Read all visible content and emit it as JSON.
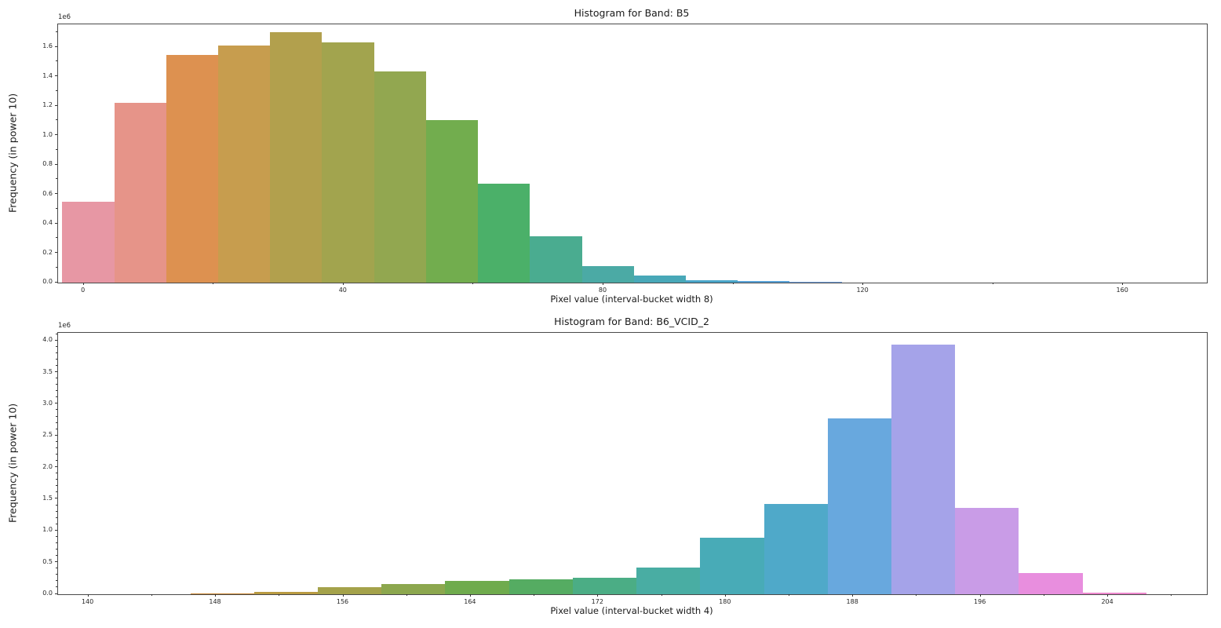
{
  "chart_data": [
    {
      "type": "bar",
      "title": "Histogram for Band: B5",
      "xlabel": "Pixel value (interval-bucket width 8)",
      "ylabel": "Frequency (in power 10)",
      "y_offset_label": "1e6",
      "grid": false,
      "legend": "none",
      "xlim": [
        -3.95,
        172.9
      ],
      "ylim": [
        0,
        1.755
      ],
      "ylim_unit": "1e6",
      "bins": {
        "start": -3.31,
        "width": 8
      },
      "counts_1e6": [
        0.545,
        1.22,
        1.545,
        1.61,
        1.7,
        1.63,
        1.43,
        1.1,
        0.672,
        0.31,
        0.11,
        0.043,
        0.016,
        0.008,
        0.004
      ],
      "bar_colors": [
        "#e797a4",
        "#e69489",
        "#dd9150",
        "#c79d4e",
        "#b2a04d",
        "#a2a44e",
        "#92a750",
        "#72ad4e",
        "#4bb069",
        "#4aac90",
        "#4baaa5",
        "#48a8b8",
        "#4aa5c8",
        "#58a2d8",
        "#6fa0e0"
      ],
      "x_ticks": {
        "values": [
          0,
          40,
          80,
          120,
          160
        ],
        "labels": [
          "0",
          "40",
          "80",
          "120",
          "160"
        ]
      },
      "x_minor_ticks": [
        20,
        60,
        100,
        140
      ],
      "y_ticks": {
        "values": [
          0,
          0.2,
          0.4,
          0.6,
          0.8,
          1.0,
          1.2,
          1.4,
          1.6
        ],
        "labels": [
          "0.0",
          "0.2",
          "0.4",
          "0.6",
          "0.8",
          "1.0",
          "1.2",
          "1.4",
          "1.6"
        ]
      },
      "y_minor_ticks": [
        0.1,
        0.3,
        0.5,
        0.7,
        0.9,
        1.1,
        1.3,
        1.5,
        1.7
      ]
    },
    {
      "type": "bar",
      "title": "Histogram for Band: B6_VCID_2",
      "xlabel": "Pixel value (interval-bucket width 4)",
      "ylabel": "Frequency (in power 10)",
      "y_offset_label": "1e6",
      "grid": false,
      "legend": "none",
      "xlim": [
        138.1,
        210.2
      ],
      "ylim": [
        0,
        4.125
      ],
      "ylim_unit": "1e6",
      "bins": {
        "start": 146.4,
        "width": 4
      },
      "counts_1e6": [
        0.012,
        0.03,
        0.11,
        0.15,
        0.2,
        0.225,
        0.26,
        0.41,
        0.88,
        1.42,
        2.77,
        3.93,
        1.36,
        0.33,
        0.022
      ],
      "bar_colors": [
        "#c8832e",
        "#b99b42",
        "#a4a24a",
        "#8ca74e",
        "#6fab4d",
        "#55ac62",
        "#4bad85",
        "#49ada3",
        "#48abb7",
        "#4fa9c9",
        "#68a8de",
        "#a5a3e9",
        "#c99ce7",
        "#e88ede",
        "#ec86cc"
      ],
      "x_ticks": {
        "values": [
          140,
          148,
          156,
          164,
          172,
          180,
          188,
          196,
          204
        ],
        "labels": [
          "140",
          "148",
          "156",
          "164",
          "172",
          "180",
          "188",
          "196",
          "204"
        ]
      },
      "x_minor_ticks": [
        144,
        152,
        160,
        168,
        176,
        184,
        192,
        200,
        208
      ],
      "y_ticks": {
        "values": [
          0,
          0.5,
          1.0,
          1.5,
          2.0,
          2.5,
          3.0,
          3.5,
          4.0
        ],
        "labels": [
          "0.0",
          "0.5",
          "1.0",
          "1.5",
          "2.0",
          "2.5",
          "3.0",
          "3.5",
          "4.0"
        ]
      },
      "y_minor_ticks": [
        0.1,
        0.2,
        0.3,
        0.4,
        0.6,
        0.7,
        0.8,
        0.9,
        1.1,
        1.2,
        1.3,
        1.4,
        1.6,
        1.7,
        1.8,
        1.9,
        2.1,
        2.2,
        2.3,
        2.4,
        2.6,
        2.7,
        2.8,
        2.9,
        3.1,
        3.2,
        3.3,
        3.4,
        3.6,
        3.7,
        3.8,
        3.9,
        4.1
      ]
    }
  ]
}
